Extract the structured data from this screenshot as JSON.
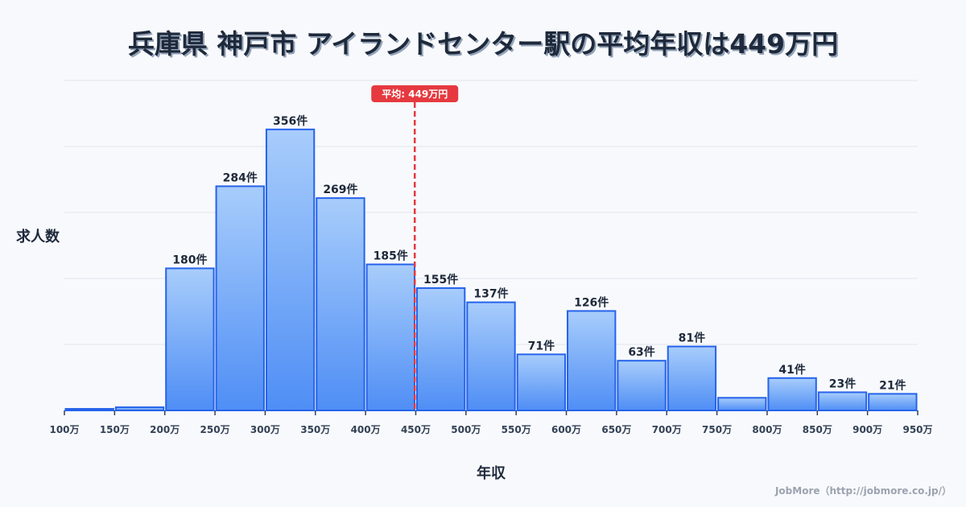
{
  "header": {
    "title": "兵庫県 神戸市 アイランドセンター駅の平均年収は449万円"
  },
  "axes": {
    "ylabel": "求人数",
    "xlabel": "年収"
  },
  "footer": {
    "credit": "JobMore（http://jobmore.co.jp/）"
  },
  "mean_marker": {
    "label": "平均: 449万円",
    "value": 449,
    "color": "#e5393f"
  },
  "colors": {
    "bar_fill_top": "#a8cdfb",
    "bar_fill_bottom": "#4f8ef5",
    "bar_stroke": "#2563eb",
    "grid": "#e2e6ee",
    "text": "#1e293b"
  },
  "chart_data": {
    "type": "bar",
    "title": "兵庫県 神戸市 アイランドセンター駅の平均年収は449万円",
    "xlabel": "年収",
    "ylabel": "求人数",
    "bin_edges": [
      "100万",
      "150万",
      "200万",
      "250万",
      "300万",
      "350万",
      "400万",
      "450万",
      "500万",
      "550万",
      "600万",
      "650万",
      "700万",
      "750万",
      "800万",
      "850万",
      "900万",
      "950万"
    ],
    "categories": [
      "100-150万",
      "150-200万",
      "200-250万",
      "250-300万",
      "300-350万",
      "350-400万",
      "400-450万",
      "450-500万",
      "500-550万",
      "550-600万",
      "600-650万",
      "650-700万",
      "700-750万",
      "750-800万",
      "800-850万",
      "850-900万",
      "900-950万"
    ],
    "values": [
      2,
      4,
      180,
      284,
      356,
      269,
      185,
      155,
      137,
      71,
      126,
      63,
      81,
      16,
      41,
      23,
      21
    ],
    "value_labels": [
      "",
      "",
      "180件",
      "284件",
      "356件",
      "269件",
      "185件",
      "155件",
      "137件",
      "71件",
      "126件",
      "63件",
      "81件",
      "",
      "41件",
      "23件",
      "21件"
    ],
    "mean": 449,
    "mean_label": "平均: 449万円",
    "ylim": [
      0,
      418
    ],
    "grid": true,
    "gridlines": 5,
    "legend": "none"
  }
}
